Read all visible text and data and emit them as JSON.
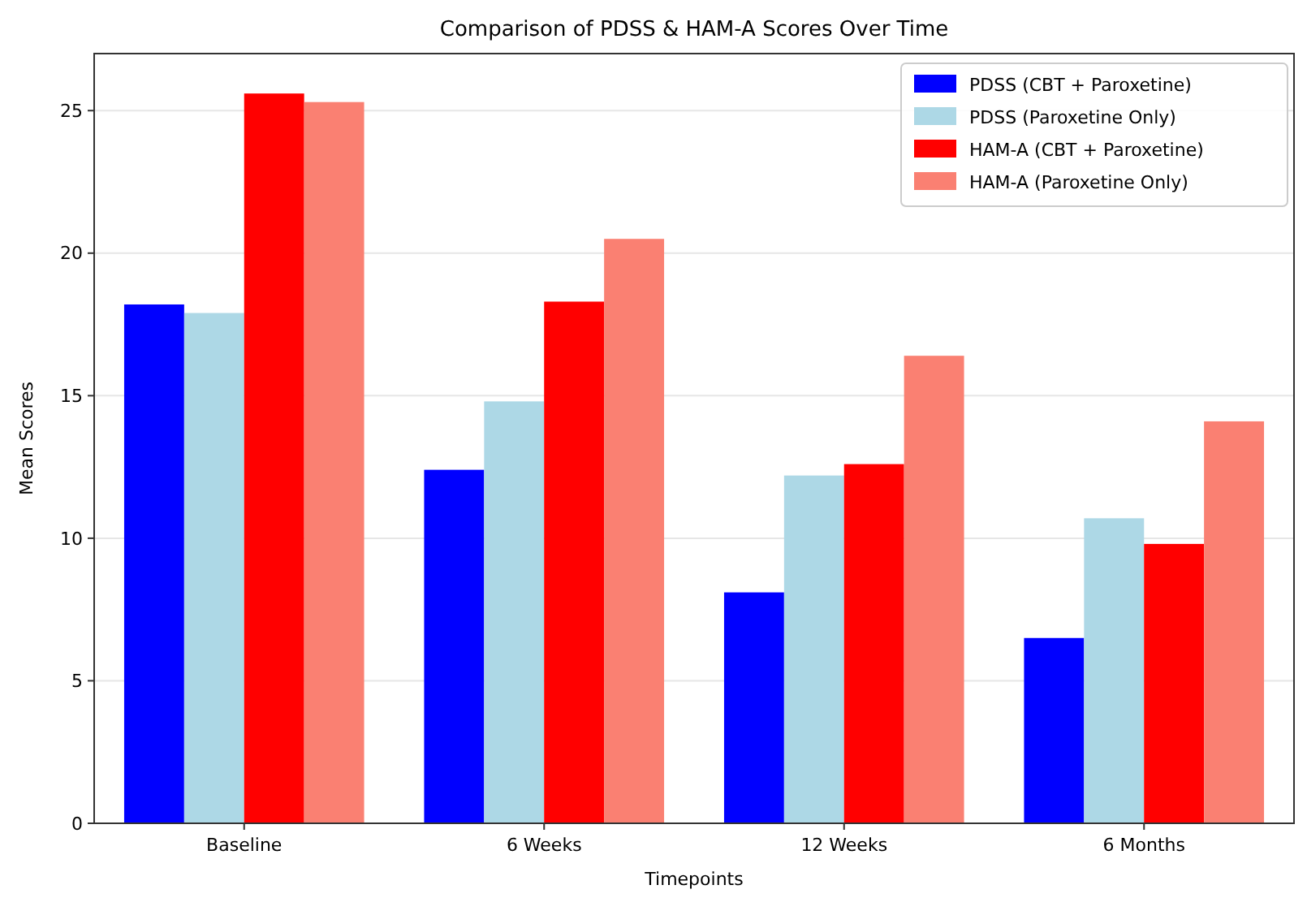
{
  "chart_data": {
    "type": "bar",
    "title": "Comparison of PDSS & HAM-A Scores Over Time",
    "xlabel": "Timepoints",
    "ylabel": "Mean Scores",
    "categories": [
      "Baseline",
      "6 Weeks",
      "12 Weeks",
      "6 Months"
    ],
    "series": [
      {
        "name": "PDSS (CBT + Paroxetine)",
        "color": "#0000ff",
        "values": [
          18.2,
          12.4,
          8.1,
          6.5
        ]
      },
      {
        "name": "PDSS (Paroxetine Only)",
        "color": "#add8e6",
        "values": [
          17.9,
          14.8,
          12.2,
          10.7
        ]
      },
      {
        "name": "HAM-A (CBT + Paroxetine)",
        "color": "#ff0000",
        "values": [
          25.6,
          18.3,
          12.6,
          9.8
        ]
      },
      {
        "name": "HAM-A (Paroxetine Only)",
        "color": "#fa8072",
        "values": [
          25.3,
          20.5,
          16.4,
          14.1
        ]
      }
    ],
    "ylim": [
      0,
      27
    ],
    "yticks": [
      0,
      5,
      10,
      15,
      20,
      25
    ],
    "grid": "y",
    "legend": "top right"
  }
}
